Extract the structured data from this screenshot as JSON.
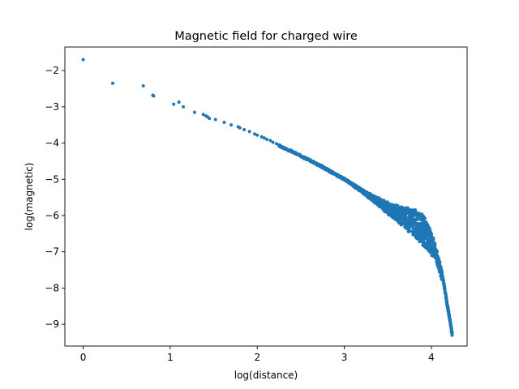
{
  "chart_data": {
    "type": "scatter",
    "title": "Magnetic field for charged wire",
    "xlabel": "log(distance)",
    "ylabel": "log(magnetic)",
    "xlim": [
      -0.21,
      4.41
    ],
    "ylim": [
      -9.6,
      -1.35
    ],
    "xticks": [
      0,
      1,
      2,
      3,
      4
    ],
    "yticks": [
      -9,
      -8,
      -7,
      -6,
      -5,
      -4,
      -3,
      -2
    ],
    "xtick_labels": [
      "0",
      "1",
      "2",
      "3",
      "4"
    ],
    "ytick_labels": [
      "−9",
      "−8",
      "−7",
      "−6",
      "−5",
      "−4",
      "−3",
      "−2"
    ],
    "grid": false,
    "color": "#1f77b4",
    "sparse_points": [
      [
        0.0,
        -1.7
      ],
      [
        0.34,
        -2.35
      ],
      [
        0.69,
        -2.42
      ],
      [
        0.8,
        -2.68
      ],
      [
        0.81,
        -2.7
      ],
      [
        1.04,
        -2.93
      ],
      [
        1.1,
        -2.87
      ],
      [
        1.15,
        -3.0
      ],
      [
        1.28,
        -3.15
      ],
      [
        1.38,
        -3.21
      ],
      [
        1.41,
        -3.25
      ],
      [
        1.43,
        -3.28
      ],
      [
        1.45,
        -3.32
      ],
      [
        1.52,
        -3.35
      ],
      [
        1.62,
        -3.43
      ],
      [
        1.7,
        -3.5
      ],
      [
        1.78,
        -3.55
      ],
      [
        1.8,
        -3.58
      ],
      [
        1.85,
        -3.63
      ],
      [
        1.91,
        -3.68
      ],
      [
        1.97,
        -3.75
      ],
      [
        2.0,
        -3.78
      ],
      [
        2.05,
        -3.83
      ],
      [
        2.08,
        -3.86
      ],
      [
        2.11,
        -3.9
      ],
      [
        2.15,
        -3.93
      ],
      [
        2.18,
        -3.98
      ],
      [
        2.22,
        -4.02
      ],
      [
        2.25,
        -4.05
      ]
    ],
    "trend_points": [
      [
        2.25,
        -4.05
      ],
      [
        2.5,
        -4.33
      ],
      [
        2.75,
        -4.64
      ],
      [
        3.0,
        -4.98
      ],
      [
        3.25,
        -5.35
      ],
      [
        3.5,
        -5.64
      ],
      [
        3.7,
        -5.78
      ],
      [
        3.8,
        -5.84
      ],
      [
        3.88,
        -5.88
      ],
      [
        3.92,
        -6.02
      ],
      [
        4.0,
        -6.45
      ],
      [
        4.05,
        -6.85
      ],
      [
        4.1,
        -7.3
      ],
      [
        4.14,
        -7.8
      ],
      [
        4.18,
        -8.4
      ],
      [
        4.21,
        -8.8
      ],
      [
        4.24,
        -9.25
      ]
    ],
    "lower_edge_points": [
      [
        3.0,
        -5.0
      ],
      [
        3.25,
        -5.45
      ],
      [
        3.5,
        -5.95
      ],
      [
        3.7,
        -6.35
      ],
      [
        3.85,
        -6.7
      ],
      [
        3.95,
        -6.95
      ],
      [
        4.05,
        -7.2
      ],
      [
        4.12,
        -7.8
      ],
      [
        4.18,
        -8.4
      ]
    ]
  }
}
